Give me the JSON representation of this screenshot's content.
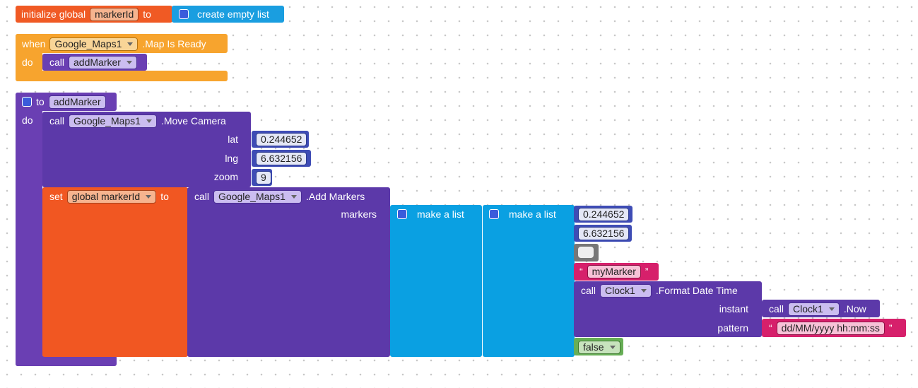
{
  "global_init": {
    "keyword": "initialize global",
    "name": "markerId",
    "to": "to",
    "value": "create empty list"
  },
  "event_handler": {
    "when": "when",
    "component": "Google_Maps1",
    "event": ".Map Is Ready",
    "do": "do",
    "body": {
      "call": "call",
      "procedure": "addMarker"
    }
  },
  "procedure": {
    "to": "to",
    "name": "addMarker",
    "do": "do",
    "move_camera": {
      "call": "call",
      "component": "Google_Maps1",
      "method": ".Move Camera",
      "params": [
        {
          "name": "lat",
          "value": 0.244652
        },
        {
          "name": "lng",
          "value": 6.632156
        },
        {
          "name": "zoom",
          "value": 9
        }
      ]
    },
    "set_variable": {
      "set": "set",
      "variable": "global markerId",
      "to": "to",
      "add_markers": {
        "call": "call",
        "component": "Google_Maps1",
        "method": ".Add Markers",
        "param": "markers",
        "outer_list": {
          "label": "make a list"
        },
        "inner_list": {
          "label": "make a list",
          "items": [
            {
              "number": 0.244652
            },
            {
              "number": 6.632156
            },
            {
              "text": "myMarker",
              "open_quote": "“",
              "close_quote": "”"
            },
            {
              "call": "call",
              "component": "Clock1",
              "method": ".Format Date Time",
              "params": [
                {
                  "name": "instant",
                  "call": "call",
                  "component": "Clock1",
                  "method": ".Now"
                },
                {
                  "name": "pattern",
                  "text": "dd/MM/yyyy hh:mm:ss",
                  "open_quote": "“",
                  "close_quote": "”"
                }
              ]
            },
            {
              "boolean": "false"
            }
          ]
        }
      }
    }
  }
}
